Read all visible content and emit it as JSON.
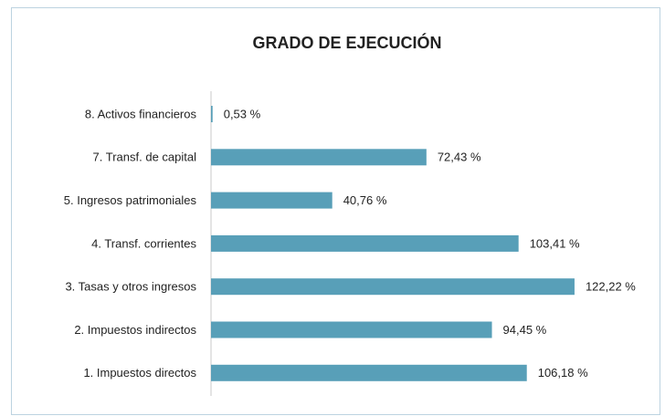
{
  "chart_data": {
    "type": "barh",
    "title": "GRADO DE EJECUCIÓN",
    "categories": [
      "8. Activos financieros",
      "7. Transf. de capital",
      "5. Ingresos patrimoniales",
      "4. Transf. corrientes",
      "3. Tasas y otros ingresos",
      "2. Impuestos indirectos",
      "1. Impuestos directos"
    ],
    "values": [
      0.53,
      72.43,
      40.76,
      103.41,
      122.22,
      94.45,
      106.18
    ],
    "value_labels": [
      "0,53 %",
      "72,43 %",
      "40,76 %",
      "103,41 %",
      "122,22 %",
      "94,45 %",
      "106,18 %"
    ],
    "color": "#589fb8"
  }
}
